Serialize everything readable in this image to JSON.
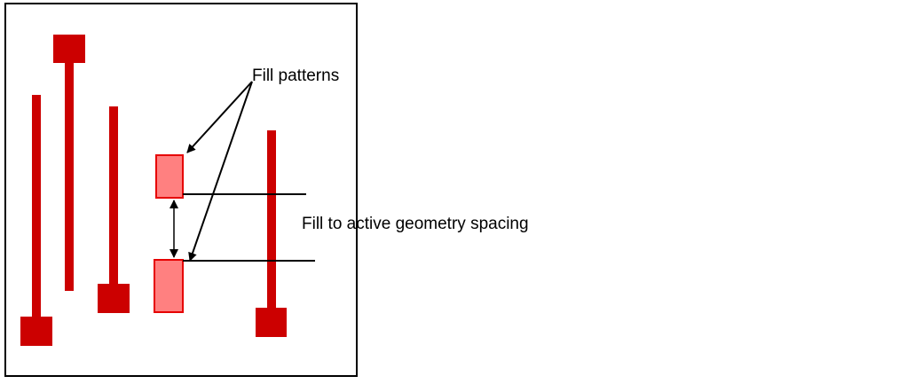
{
  "labels": {
    "fill_patterns": "Fill patterns",
    "fill_spacing": "Fill to active geometry spacing"
  },
  "colors": {
    "active_geometry": "#cc0000",
    "fill_pattern": "#ff8080",
    "fill_pattern_border": "#e60000",
    "border": "#000000",
    "arrow": "#000000"
  }
}
